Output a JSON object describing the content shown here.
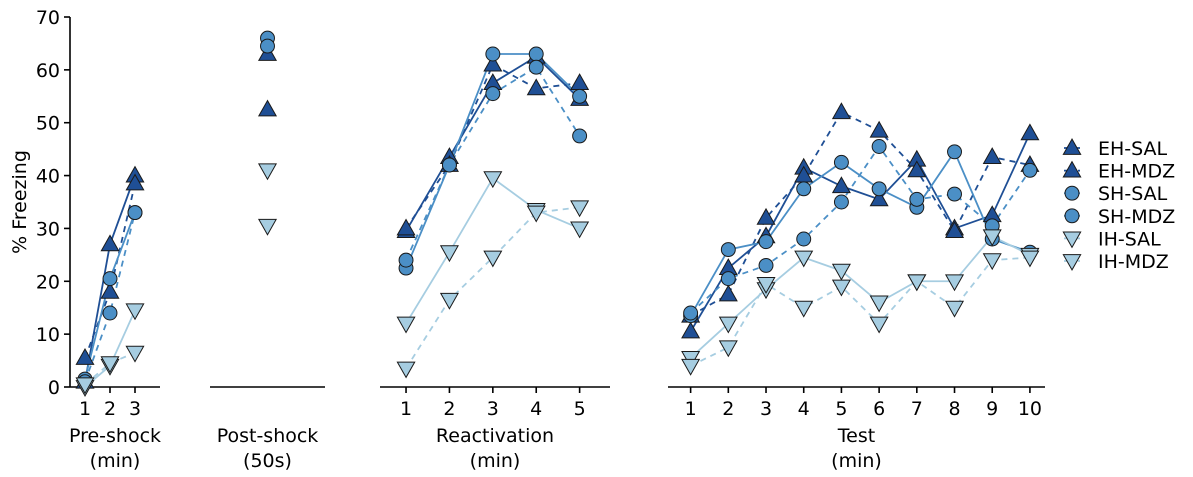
{
  "chart_data": {
    "type": "line",
    "ylabel": "% Freezing",
    "ylim": [
      0,
      70
    ],
    "yticks": [
      0,
      10,
      20,
      30,
      40,
      50,
      60,
      70
    ],
    "legend_position": "right",
    "panels": [
      {
        "id": "preshock",
        "xlabel_line1": "Pre-shock",
        "xlabel_line2": "(min)",
        "xticks": [
          1,
          2,
          3
        ],
        "xlim": [
          0.4,
          4.0
        ],
        "series": {
          "EH-SAL": [
            1,
            27,
            40
          ],
          "EH-MDZ": [
            5.5,
            18,
            38.5
          ],
          "SH-SAL": [
            1.5,
            20.5,
            33
          ],
          "SH-MDZ": [
            1,
            14,
            33
          ],
          "IH-SAL": [
            0,
            4,
            14.5
          ],
          "IH-MDZ": [
            0.5,
            4.5,
            6.5
          ]
        }
      },
      {
        "id": "postshock",
        "xlabel_line1": "Post-shock",
        "xlabel_line2": "(50s)",
        "xticks": [],
        "xlim": [
          0,
          2
        ],
        "series": {
          "EH-SAL": [
            63
          ],
          "EH-MDZ": [
            52.5
          ],
          "SH-SAL": [
            66
          ],
          "SH-MDZ": [
            64.5
          ],
          "IH-SAL": [
            41
          ],
          "IH-MDZ": [
            30.5
          ]
        }
      },
      {
        "id": "reactivation",
        "xlabel_line1": "Reactivation",
        "xlabel_line2": "(min)",
        "xticks": [
          1,
          2,
          3,
          4,
          5
        ],
        "xlim": [
          0.4,
          5.7
        ],
        "series": {
          "EH-SAL": [
            29.5,
            43.5,
            57.5,
            62.5,
            54.5
          ],
          "EH-MDZ": [
            30,
            42,
            61,
            56.5,
            57.5
          ],
          "SH-SAL": [
            22.5,
            42,
            63,
            63,
            55
          ],
          "SH-MDZ": [
            24,
            42,
            55.5,
            60.5,
            47.5
          ],
          "IH-SAL": [
            12,
            25.5,
            39.5,
            33.5,
            30
          ],
          "IH-MDZ": [
            3.5,
            16.5,
            24.5,
            33,
            34
          ]
        }
      },
      {
        "id": "test",
        "xlabel_line1": "Test",
        "xlabel_line2": "(min)",
        "xticks": [
          1,
          2,
          3,
          4,
          5,
          6,
          7,
          8,
          9,
          10
        ],
        "xlim": [
          0.4,
          10.4
        ],
        "series": {
          "EH-SAL": [
            10.5,
            22.5,
            28.5,
            41.5,
            38,
            35.5,
            43,
            30,
            32.5,
            48
          ],
          "EH-MDZ": [
            13.5,
            17.5,
            32,
            40,
            52,
            48.5,
            41,
            29.5,
            43.5,
            42
          ],
          "SH-SAL": [
            13.5,
            26,
            27.5,
            37.5,
            42.5,
            37.5,
            34,
            44.5,
            28,
            25.5
          ],
          "SH-MDZ": [
            14,
            20.5,
            23,
            28,
            35,
            45.5,
            35.5,
            36.5,
            30.5,
            41
          ],
          "IH-SAL": [
            5.5,
            12,
            18.5,
            24.5,
            22,
            16,
            20,
            20,
            28.5,
            25
          ],
          "IH-MDZ": [
            4,
            7.5,
            19.5,
            15,
            19,
            12,
            20,
            15,
            24,
            24.5
          ]
        }
      }
    ],
    "legend": [
      {
        "name": "EH-SAL",
        "marker": "triangle-up",
        "color": "#1f4f95",
        "line": "solid"
      },
      {
        "name": "EH-MDZ",
        "marker": "triangle-up",
        "color": "#1f4f95",
        "line": "dashed"
      },
      {
        "name": "SH-SAL",
        "marker": "circle",
        "color": "#4b8fc6",
        "line": "solid"
      },
      {
        "name": "SH-MDZ",
        "marker": "circle",
        "color": "#4b8fc6",
        "line": "dashed"
      },
      {
        "name": "IH-SAL",
        "marker": "triangle-down",
        "color": "#a6cde1",
        "line": "solid"
      },
      {
        "name": "IH-MDZ",
        "marker": "triangle-down",
        "color": "#a6cde1",
        "line": "dashed"
      }
    ]
  }
}
